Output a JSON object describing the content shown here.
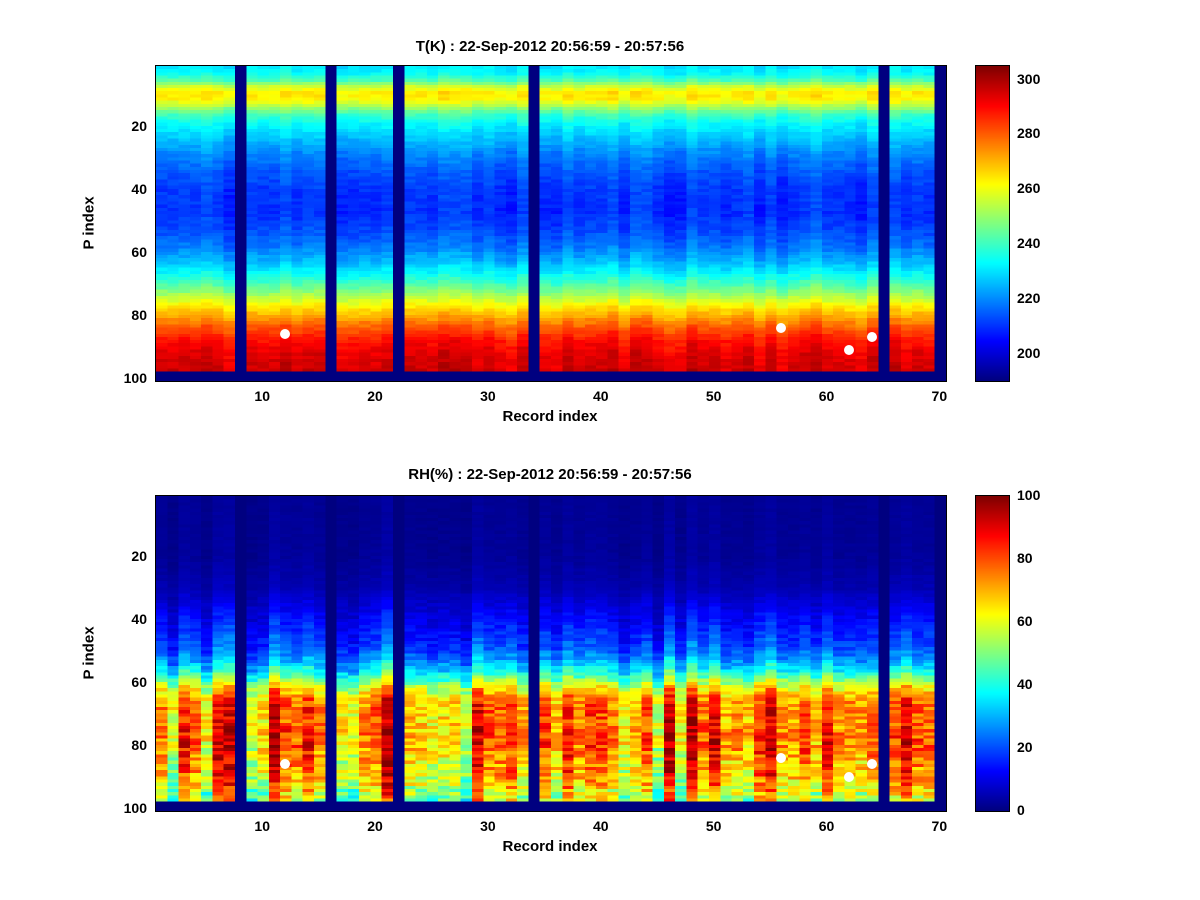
{
  "figure": {
    "background": "#ffffff",
    "colormap_name": "jet",
    "marker_color": "#ffffff",
    "missing_data_color_meaning": "dark-blue gap columns (no data)"
  },
  "chart_data": [
    {
      "type": "heatmap",
      "title": "T(K) : 22-Sep-2012 20:56:59 - 20:57:56",
      "xlabel": "Record index",
      "ylabel": "P index",
      "x_range": [
        1,
        70
      ],
      "y_range": [
        1,
        100
      ],
      "x_ticks": [
        10,
        20,
        30,
        40,
        50,
        60,
        70
      ],
      "y_ticks": [
        20,
        40,
        60,
        80,
        100
      ],
      "colormap": "jet",
      "clim": [
        190,
        305
      ],
      "colorbar_ticks": [
        200,
        220,
        240,
        260,
        280,
        300
      ],
      "value_profile_by_p_index": [
        [
          1,
          231
        ],
        [
          3,
          234
        ],
        [
          5,
          242
        ],
        [
          7,
          256
        ],
        [
          9,
          264
        ],
        [
          11,
          263
        ],
        [
          13,
          254
        ],
        [
          16,
          240
        ],
        [
          19,
          233
        ],
        [
          23,
          227
        ],
        [
          28,
          220
        ],
        [
          34,
          214
        ],
        [
          40,
          210.5
        ],
        [
          47,
          209.5
        ],
        [
          53,
          213
        ],
        [
          58,
          218
        ],
        [
          63,
          226
        ],
        [
          68,
          237
        ],
        [
          72,
          248
        ],
        [
          76,
          261
        ],
        [
          80,
          272
        ],
        [
          84,
          282
        ],
        [
          88,
          290
        ],
        [
          92,
          294
        ],
        [
          97,
          296
        ],
        [
          100,
          297
        ]
      ],
      "noise": {
        "seed": 11,
        "col_amp": 4,
        "cell_amp": 2.5,
        "weight_by_p": [
          [
            1,
            0.8
          ],
          [
            100,
            1
          ]
        ]
      },
      "missing_record_cols": [
        8,
        16,
        22,
        34,
        65,
        70
      ],
      "masked_bottom_rows": 3,
      "markers": [
        {
          "record": 12,
          "p": 86
        },
        {
          "record": 56,
          "p": 84
        },
        {
          "record": 62,
          "p": 91
        },
        {
          "record": 64,
          "p": 87
        }
      ]
    },
    {
      "type": "heatmap",
      "title": "RH(%) : 22-Sep-2012 20:56:59 - 20:57:56",
      "xlabel": "Record index",
      "ylabel": "P index",
      "x_range": [
        1,
        70
      ],
      "y_range": [
        1,
        100
      ],
      "x_ticks": [
        10,
        20,
        30,
        40,
        50,
        60,
        70
      ],
      "y_ticks": [
        20,
        40,
        60,
        80,
        100
      ],
      "colormap": "jet",
      "clim": [
        0,
        100
      ],
      "colorbar_ticks": [
        0,
        20,
        40,
        60,
        80,
        100
      ],
      "value_profile_by_p_index": [
        [
          1,
          2
        ],
        [
          20,
          2.5
        ],
        [
          30,
          5
        ],
        [
          36,
          10
        ],
        [
          42,
          15
        ],
        [
          48,
          20
        ],
        [
          52,
          27
        ],
        [
          56,
          38
        ],
        [
          59,
          52
        ],
        [
          62,
          65
        ],
        [
          65,
          74
        ],
        [
          68,
          78
        ],
        [
          72,
          76
        ],
        [
          76,
          80
        ],
        [
          80,
          78
        ],
        [
          84,
          74
        ],
        [
          88,
          73
        ],
        [
          92,
          68
        ],
        [
          96,
          60
        ],
        [
          100,
          55
        ]
      ],
      "noise": {
        "seed": 77,
        "col_amp": 19,
        "cell_amp": 9,
        "weight_by_p": [
          [
            1,
            0.06
          ],
          [
            30,
            0.1
          ],
          [
            40,
            0.3
          ],
          [
            50,
            0.45
          ],
          [
            56,
            0.6
          ],
          [
            62,
            0.8
          ],
          [
            70,
            1.0
          ],
          [
            80,
            1.15
          ],
          [
            100,
            1.15
          ]
        ]
      },
      "missing_record_cols": [
        8,
        16,
        22,
        34,
        65,
        70
      ],
      "masked_bottom_rows": 3,
      "markers": [
        {
          "record": 12,
          "p": 86
        },
        {
          "record": 56,
          "p": 84
        },
        {
          "record": 62,
          "p": 90
        },
        {
          "record": 64,
          "p": 86
        }
      ]
    }
  ]
}
